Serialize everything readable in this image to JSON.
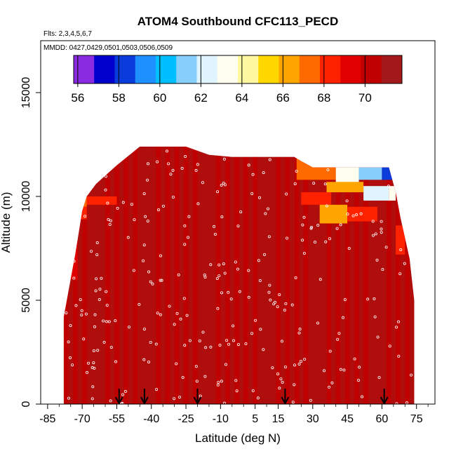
{
  "chart_data": {
    "type": "heatmap",
    "title": "ATOM4 Southbound CFC113_PECD",
    "subtitle_flights": "Flts: 2,3,4,5,6,7",
    "subtitle_dates": "MMDD: 0427,0429,0501,0503,0506,0509",
    "xlabel": "Latitude (deg N)",
    "ylabel": "Altitude (m)",
    "xlim": [
      -88,
      83
    ],
    "ylim": [
      0,
      17500
    ],
    "x_ticks": [
      -85,
      -70,
      -55,
      -40,
      -25,
      -10,
      5,
      15,
      30,
      45,
      60,
      75
    ],
    "x_tick_labels": [
      "-85",
      "-70",
      "-55",
      "-40",
      "-25",
      "-10",
      "5",
      "15",
      "30",
      "45",
      "60",
      "75"
    ],
    "y_ticks": [
      0,
      5000,
      10000,
      15000
    ],
    "y_tick_labels": [
      "0",
      "5000",
      "10000",
      "15000"
    ],
    "colorbar": {
      "min": 55.8,
      "max": 71.8,
      "ticks": [
        56,
        58,
        60,
        62,
        64,
        66,
        68,
        70
      ],
      "tick_labels": [
        "56",
        "58",
        "60",
        "62",
        "64",
        "66",
        "68",
        "70"
      ],
      "colors": [
        "#8a2be2",
        "#0000cd",
        "#0a3cdc",
        "#1e90ff",
        "#00bfff",
        "#87cefa",
        "#e0f4ff",
        "#fffff0",
        "#fff8a0",
        "#ffd700",
        "#ffa500",
        "#ff6a00",
        "#ff2200",
        "#e00000",
        "#c00000",
        "#a31818"
      ]
    },
    "flight_arrows_lat": [
      -54,
      -43,
      -20,
      18,
      61
    ],
    "profile_top_altitude": [
      [
        -78,
        4200
      ],
      [
        -77,
        4800
      ],
      [
        -76,
        5400
      ],
      [
        -75,
        6000
      ],
      [
        -74,
        6600
      ],
      [
        -73,
        7200
      ],
      [
        -72,
        7900
      ],
      [
        -71,
        8600
      ],
      [
        -70,
        9300
      ],
      [
        -68,
        10000
      ],
      [
        -64,
        10600
      ],
      [
        -60,
        11000
      ],
      [
        -55,
        11500
      ],
      [
        -45,
        12400
      ],
      [
        -25,
        12400
      ],
      [
        -15,
        12000
      ],
      [
        -5,
        11900
      ],
      [
        5,
        11900
      ],
      [
        15,
        11900
      ],
      [
        22,
        11900
      ],
      [
        25,
        11700
      ],
      [
        30,
        11400
      ],
      [
        40,
        11400
      ],
      [
        60,
        11400
      ],
      [
        63,
        11400
      ],
      [
        66,
        10200
      ],
      [
        68,
        9000
      ],
      [
        70,
        8000
      ],
      [
        72,
        7000
      ],
      [
        73,
        6000
      ],
      [
        74,
        5000
      ]
    ],
    "cells": [
      {
        "lat": [
          -84,
          -68
        ],
        "alt": [
          9500,
          10100
        ],
        "value": 67.0
      },
      {
        "lat": [
          -84,
          -68
        ],
        "alt": [
          8900,
          9500
        ],
        "value": 68.5
      },
      {
        "lat": [
          -80,
          -70
        ],
        "alt": [
          10100,
          10600
        ],
        "value": 69.0
      },
      {
        "lat": [
          -68,
          -55
        ],
        "alt": [
          9600,
          10000
        ],
        "value": 68.0
      },
      {
        "lat": [
          -85,
          -74
        ],
        "alt": [
          7800,
          8600
        ],
        "value": 68.8
      },
      {
        "lat": [
          -85,
          -72
        ],
        "alt": [
          6000,
          7800
        ],
        "value": 69.5
      },
      {
        "lat": [
          23,
          40
        ],
        "alt": [
          10800,
          11900
        ],
        "value": 67.5
      },
      {
        "lat": [
          40,
          50
        ],
        "alt": [
          10600,
          11400
        ],
        "value": 63.5
      },
      {
        "lat": [
          50,
          60
        ],
        "alt": [
          10800,
          11400
        ],
        "value": 61.5
      },
      {
        "lat": [
          60,
          66
        ],
        "alt": [
          10800,
          11400
        ],
        "value": 58.5
      },
      {
        "lat": [
          36,
          52
        ],
        "alt": [
          10200,
          10700
        ],
        "value": 66.0
      },
      {
        "lat": [
          52,
          63
        ],
        "alt": [
          9800,
          10500
        ],
        "value": 62.0
      },
      {
        "lat": [
          63,
          66
        ],
        "alt": [
          9800,
          10500
        ],
        "value": 63.0
      },
      {
        "lat": [
          25,
          38
        ],
        "alt": [
          9600,
          10200
        ],
        "value": 68.5
      },
      {
        "lat": [
          33,
          45
        ],
        "alt": [
          8700,
          9600
        ],
        "value": 66.0
      },
      {
        "lat": [
          45,
          58
        ],
        "alt": [
          8800,
          9500
        ],
        "value": 68.0
      },
      {
        "lat": [
          66,
          70
        ],
        "alt": [
          7200,
          8600
        ],
        "value": 68.5
      }
    ]
  }
}
